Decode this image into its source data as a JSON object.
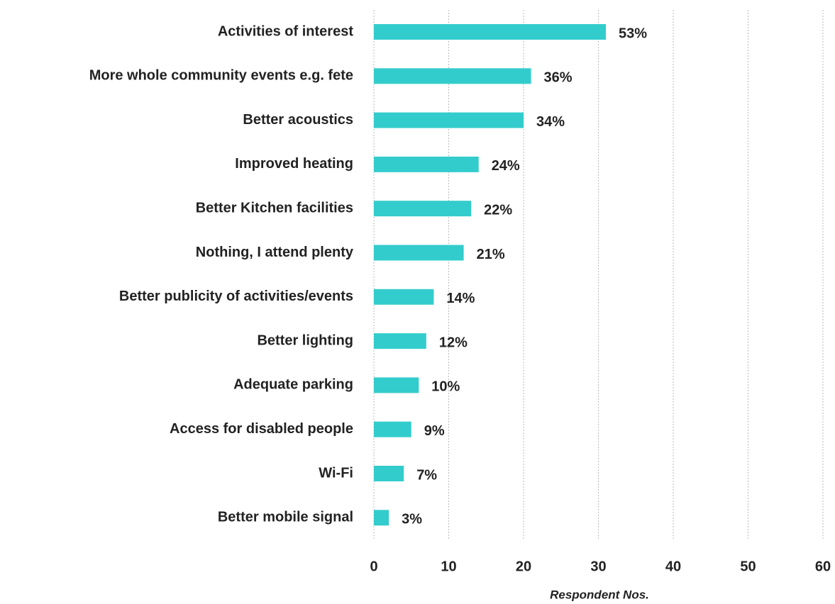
{
  "chart_data": {
    "type": "barh",
    "categories": [
      "Activities of interest",
      "More whole community events e.g. fete",
      "Better acoustics",
      "Improved heating",
      "Better Kitchen facilities",
      "Nothing, I attend plenty",
      "Better publicity of activities/events",
      "Better lighting",
      "Adequate parking",
      "Access for disabled people",
      "Wi-Fi",
      "Better mobile signal"
    ],
    "values": [
      31,
      21,
      20,
      14,
      13,
      12,
      8,
      7,
      6,
      5,
      4,
      2
    ],
    "percent_labels": [
      "53%",
      "36%",
      "34%",
      "24%",
      "22%",
      "21%",
      "14%",
      "12%",
      "10%",
      "9%",
      "7%",
      "3%"
    ],
    "color": "#33cccc",
    "xlabel": "Respondent Nos.",
    "xlim": [
      0,
      60
    ],
    "xticks": [
      0,
      10,
      20,
      30,
      40,
      50,
      60
    ],
    "grid": true
  }
}
